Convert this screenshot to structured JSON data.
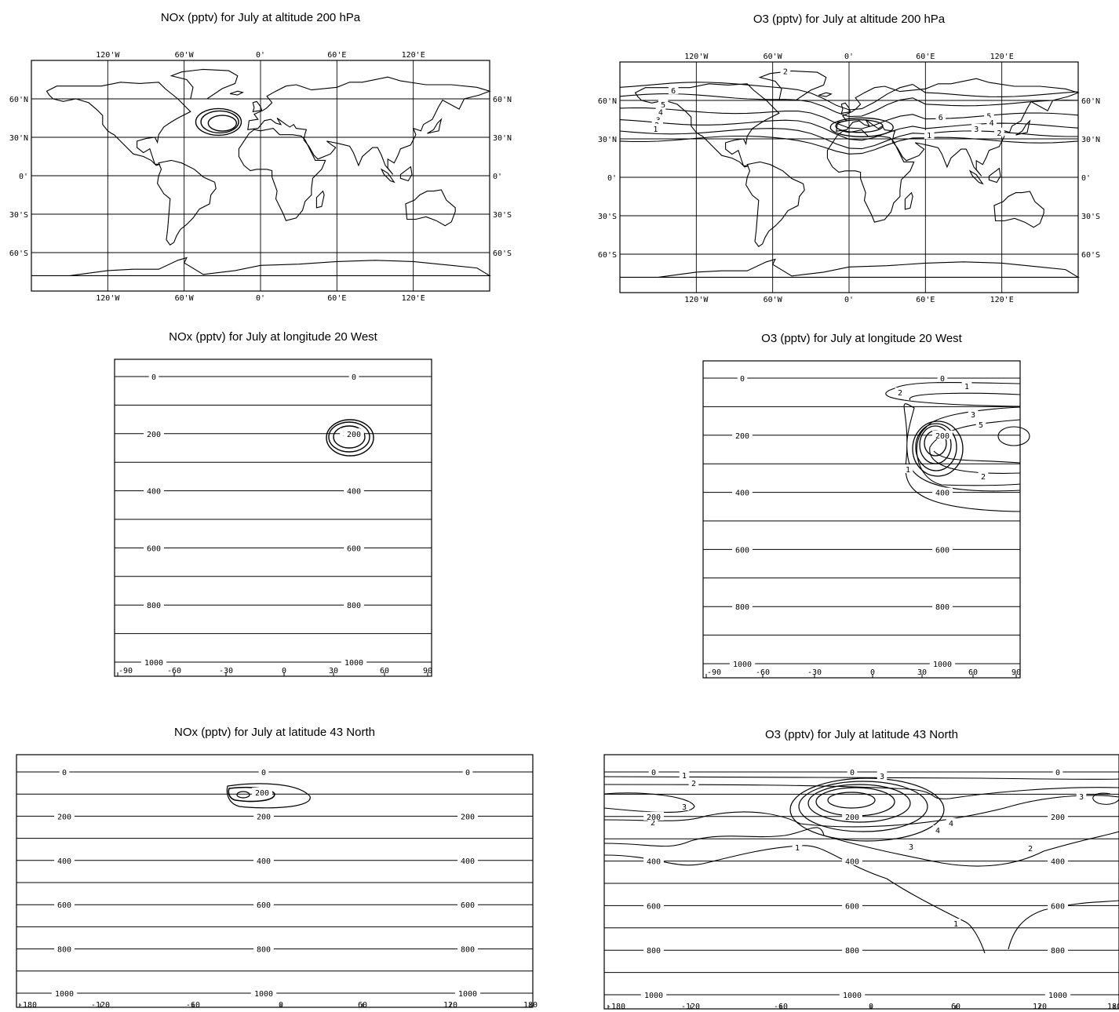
{
  "panels": {
    "map_nox": {
      "title": "NOx (pptv) for July at altitude 200 hPa"
    },
    "map_o3": {
      "title": "O3 (pptv) for July at altitude 200 hPa"
    },
    "lon_nox": {
      "title": "NOx (pptv) for July at longitude 20 West"
    },
    "lon_o3": {
      "title": "O3 (pptv) for July at longitude 20 West"
    },
    "lat_nox": {
      "title": "NOx (pptv) for July at latitude 43 North"
    },
    "lat_o3": {
      "title": "O3 (pptv) for July at latitude 43 North"
    }
  },
  "map_axes": {
    "lon_ticks": [
      "120'W",
      "60'W",
      "0'",
      "60'E",
      "120'E"
    ],
    "lat_ticks": [
      "60'N",
      "30'N",
      "0'",
      "30'S",
      "60'S"
    ]
  },
  "section_axes": {
    "pressure_labels": [
      "0",
      "200",
      "400",
      "600",
      "800",
      "1000"
    ],
    "lat_ticks": [
      "-90",
      "-60",
      "-30",
      "0",
      "30",
      "60",
      "90"
    ],
    "lon_ticks": [
      "-180",
      "-120",
      "-60",
      "0",
      "60",
      "120",
      "180"
    ]
  },
  "contour_labels": {
    "map_o3": [
      "6",
      "5",
      "4",
      "3",
      "2",
      "1",
      "6",
      "5",
      "4",
      "3",
      "2",
      "1",
      "2"
    ],
    "lon_nox": [
      "200"
    ],
    "lon_o3": [
      "1",
      "2",
      "3",
      "5",
      "2",
      "1"
    ],
    "lat_nox": [
      "200"
    ],
    "lat_o3": [
      "1",
      "2",
      "3",
      "2",
      "1",
      "3",
      "4",
      "4",
      "3",
      "2",
      "1",
      "1",
      "3"
    ]
  }
}
